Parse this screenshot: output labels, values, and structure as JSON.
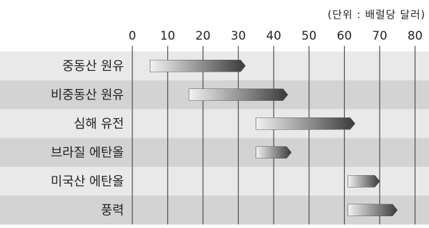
{
  "chart_data": {
    "type": "bar",
    "subtype": "floating-range-horizontal",
    "title": "",
    "unit_note": "(단위 : 배럴당 달러)",
    "xlabel": "",
    "ylabel": "",
    "xlim": [
      0,
      80
    ],
    "xticks": [
      0,
      10,
      20,
      30,
      40,
      50,
      60,
      70,
      80
    ],
    "grid": true,
    "legend": "none",
    "categories": [
      "중동산 원유",
      "비중동산 원유",
      "심해 유전",
      "브라질 에탄올",
      "미국산 에탄올",
      "풍력"
    ],
    "ranges": [
      {
        "low": 5,
        "high": 32
      },
      {
        "low": 16,
        "high": 44
      },
      {
        "low": 35,
        "high": 63
      },
      {
        "low": 35,
        "high": 45
      },
      {
        "low": 61,
        "high": 70
      },
      {
        "low": 61,
        "high": 75
      }
    ],
    "colors": {
      "row_light": "#e9e9e9",
      "row_dark": "#d3d3d3",
      "bar_light": "#f2f2f2",
      "bar_dark": "#3a3a3a",
      "grid": "#4a4a4a"
    }
  }
}
